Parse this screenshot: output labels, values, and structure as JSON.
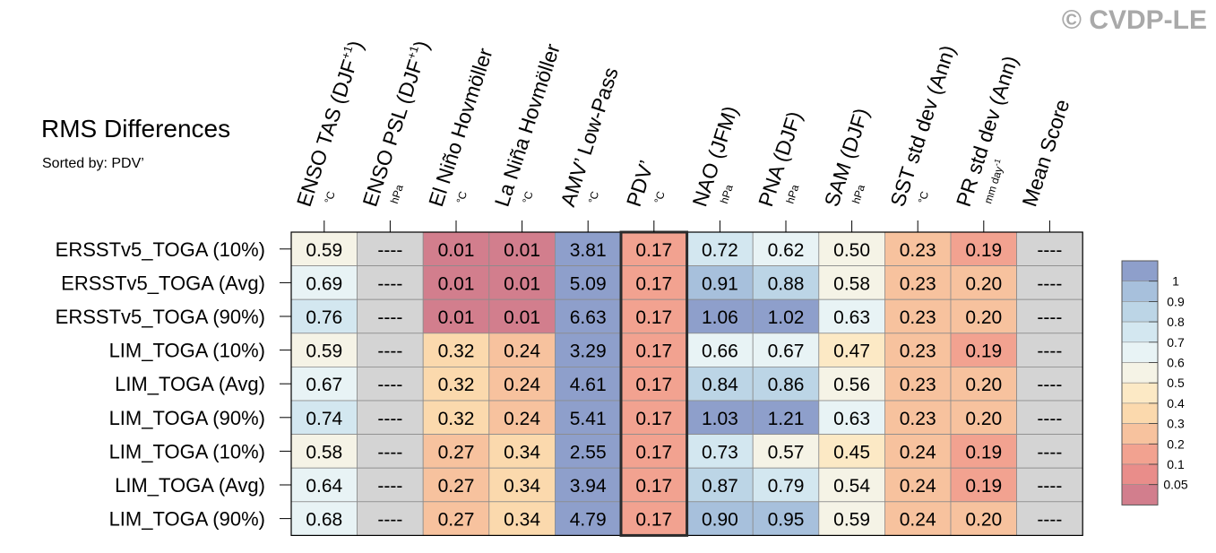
{
  "watermark": "© CVDP-LE",
  "title": "RMS Differences",
  "subtitle": "Sorted by: PDV’",
  "chart_data": {
    "type": "heatmap",
    "highlighted_column": "PDV’",
    "columns": [
      {
        "label": "ENSO TAS (DJF",
        "sup": "+1",
        "tail": ")",
        "unit": "°C"
      },
      {
        "label": "ENSO PSL (DJF",
        "sup": "+1",
        "tail": ")",
        "unit": "hPa"
      },
      {
        "label": "El Niño Hovmöller",
        "sup": "",
        "tail": "",
        "unit": "°C"
      },
      {
        "label": "La Niña Hovmöller",
        "sup": "",
        "tail": "",
        "unit": "°C"
      },
      {
        "label": "AMV’ Low-Pass",
        "sup": "",
        "tail": "",
        "unit": "°C"
      },
      {
        "label": "PDV’",
        "sup": "",
        "tail": "",
        "unit": "°C"
      },
      {
        "label": "NAO (JFM)",
        "sup": "",
        "tail": "",
        "unit": "hPa"
      },
      {
        "label": "PNA (DJF)",
        "sup": "",
        "tail": "",
        "unit": "hPa"
      },
      {
        "label": "SAM (DJF)",
        "sup": "",
        "tail": "",
        "unit": "hPa"
      },
      {
        "label": "SST std dev (Ann)",
        "sup": "",
        "tail": "",
        "unit": "°C"
      },
      {
        "label": "PR std dev (Ann)",
        "sup": "",
        "tail": "",
        "unit": "mm day",
        "unit_sup": "-1"
      },
      {
        "label": "Mean Score",
        "sup": "",
        "tail": "",
        "unit": ""
      }
    ],
    "rows": [
      {
        "label": "ERSSTv5_TOGA (10%)",
        "values": [
          "0.59",
          "----",
          "0.01",
          "0.01",
          "3.81",
          "0.17",
          "0.72",
          "0.62",
          "0.50",
          "0.23",
          "0.19",
          "----"
        ]
      },
      {
        "label": "ERSSTv5_TOGA (Avg)",
        "values": [
          "0.69",
          "----",
          "0.01",
          "0.01",
          "5.09",
          "0.17",
          "0.91",
          "0.88",
          "0.58",
          "0.23",
          "0.20",
          "----"
        ]
      },
      {
        "label": "ERSSTv5_TOGA (90%)",
        "values": [
          "0.76",
          "----",
          "0.01",
          "0.01",
          "6.63",
          "0.17",
          "1.06",
          "1.02",
          "0.63",
          "0.23",
          "0.20",
          "----"
        ]
      },
      {
        "label": "LIM_TOGA (10%)",
        "values": [
          "0.59",
          "----",
          "0.32",
          "0.24",
          "3.29",
          "0.17",
          "0.66",
          "0.67",
          "0.47",
          "0.23",
          "0.19",
          "----"
        ]
      },
      {
        "label": "LIM_TOGA (Avg)",
        "values": [
          "0.67",
          "----",
          "0.32",
          "0.24",
          "4.61",
          "0.17",
          "0.84",
          "0.86",
          "0.56",
          "0.23",
          "0.20",
          "----"
        ]
      },
      {
        "label": "LIM_TOGA (90%)",
        "values": [
          "0.74",
          "----",
          "0.32",
          "0.24",
          "5.41",
          "0.17",
          "1.03",
          "1.21",
          "0.63",
          "0.23",
          "0.20",
          "----"
        ]
      },
      {
        "label": "LIM_TOGA (10%)",
        "values": [
          "0.58",
          "----",
          "0.27",
          "0.34",
          "2.55",
          "0.17",
          "0.73",
          "0.57",
          "0.45",
          "0.24",
          "0.19",
          "----"
        ]
      },
      {
        "label": "LIM_TOGA (Avg)",
        "values": [
          "0.64",
          "----",
          "0.27",
          "0.34",
          "3.94",
          "0.17",
          "0.87",
          "0.79",
          "0.54",
          "0.24",
          "0.19",
          "----"
        ]
      },
      {
        "label": "LIM_TOGA (90%)",
        "values": [
          "0.68",
          "----",
          "0.27",
          "0.34",
          "4.79",
          "0.17",
          "0.90",
          "0.95",
          "0.59",
          "0.24",
          "0.20",
          "----"
        ]
      }
    ],
    "colorbar": {
      "labels": [
        "1",
        "0.9",
        "0.8",
        "0.7",
        "0.6",
        "0.5",
        "0.4",
        "0.3",
        "0.2",
        "0.1",
        "0.05"
      ],
      "colors": [
        "#8e9fcb",
        "#a7c0dc",
        "#bcd5e6",
        "#d3e7f0",
        "#e8f3f5",
        "#f5f3e6",
        "#fce9c5",
        "#fbd9ad",
        "#f7c29e",
        "#f2a290",
        "#e98d8a",
        "#d27e8d"
      ],
      "thresholds": [
        0.05,
        0.1,
        0.2,
        0.3,
        0.4,
        0.5,
        0.6,
        0.7,
        0.8,
        0.9,
        1.0
      ],
      "missing_color": "#d4d4d4"
    }
  }
}
